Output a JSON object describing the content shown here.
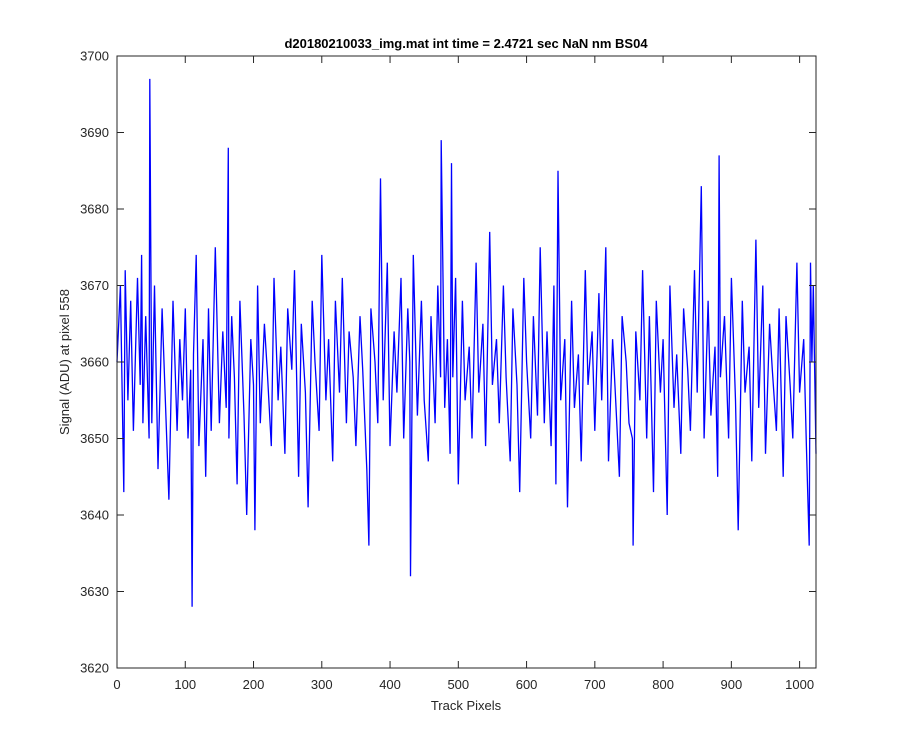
{
  "chart_data": {
    "type": "line",
    "title": "d20180210033_img.mat int time = 2.4721 sec  NaN nm BS04",
    "xlabel": "Track Pixels",
    "ylabel": "Signal (ADU) at pixel 558",
    "xlim": [
      0,
      1024
    ],
    "ylim": [
      3620,
      3700
    ],
    "xticks": [
      0,
      100,
      200,
      300,
      400,
      500,
      600,
      700,
      800,
      900,
      1000
    ],
    "yticks": [
      3620,
      3630,
      3640,
      3650,
      3660,
      3670,
      3680,
      3690,
      3700
    ],
    "grid": false,
    "line_color": "#0000ff",
    "series": [
      {
        "x": [
          0,
          5,
          10,
          12,
          16,
          20,
          24,
          30,
          34,
          36,
          38,
          42,
          47,
          48,
          51,
          55,
          60,
          66,
          70,
          76,
          82,
          88,
          92,
          96,
          100,
          104,
          108,
          110,
          112,
          116,
          120,
          126,
          130,
          134,
          138,
          144,
          150,
          155,
          160,
          163,
          164,
          168,
          172,
          176,
          180,
          186,
          190,
          196,
          200,
          202,
          206,
          210,
          216,
          220,
          226,
          230,
          236,
          240,
          246,
          250,
          256,
          260,
          266,
          270,
          276,
          280,
          286,
          290,
          296,
          300,
          306,
          310,
          316,
          320,
          326,
          330,
          336,
          340,
          346,
          350,
          356,
          360,
          366,
          369,
          372,
          378,
          382,
          386,
          390,
          396,
          400,
          406,
          410,
          416,
          420,
          426,
          429,
          430,
          434,
          440,
          446,
          450,
          456,
          460,
          466,
          470,
          474,
          475,
          480,
          484,
          488,
          490,
          492,
          496,
          500,
          506,
          510,
          516,
          520,
          526,
          530,
          536,
          540,
          546,
          550,
          556,
          560,
          566,
          570,
          576,
          580,
          586,
          590,
          596,
          600,
          606,
          610,
          616,
          620,
          626,
          630,
          636,
          640,
          643,
          646,
          650,
          656,
          660,
          666,
          670,
          676,
          680,
          686,
          690,
          696,
          700,
          706,
          710,
          716,
          720,
          726,
          730,
          736,
          740,
          746,
          750,
          755,
          756,
          760,
          766,
          770,
          776,
          780,
          786,
          790,
          796,
          800,
          806,
          810,
          816,
          820,
          826,
          830,
          836,
          840,
          846,
          850,
          856,
          860,
          866,
          870,
          876,
          880,
          882,
          884,
          890,
          896,
          900,
          906,
          910,
          916,
          920,
          926,
          930,
          936,
          940,
          946,
          950,
          956,
          960,
          966,
          970,
          976,
          980,
          986,
          990,
          996,
          1000,
          1006,
          1010,
          1014,
          1016,
          1018,
          1020,
          1024
        ],
        "y": [
          3660,
          3670,
          3643,
          3672,
          3655,
          3668,
          3651,
          3671,
          3657,
          3674,
          3652,
          3666,
          3650,
          3697,
          3652,
          3670,
          3646,
          3667,
          3657,
          3642,
          3668,
          3651,
          3663,
          3655,
          3667,
          3650,
          3659,
          3628,
          3661,
          3674,
          3649,
          3663,
          3645,
          3667,
          3651,
          3675,
          3652,
          3664,
          3654,
          3688,
          3650,
          3666,
          3658,
          3644,
          3668,
          3653,
          3640,
          3663,
          3657,
          3638,
          3670,
          3652,
          3665,
          3659,
          3649,
          3671,
          3655,
          3662,
          3648,
          3667,
          3659,
          3672,
          3645,
          3665,
          3656,
          3641,
          3668,
          3660,
          3651,
          3674,
          3655,
          3663,
          3647,
          3668,
          3656,
          3671,
          3652,
          3664,
          3658,
          3649,
          3666,
          3659,
          3646,
          3636,
          3667,
          3660,
          3652,
          3684,
          3655,
          3673,
          3649,
          3664,
          3656,
          3671,
          3650,
          3667,
          3660,
          3632,
          3674,
          3653,
          3668,
          3655,
          3647,
          3666,
          3652,
          3670,
          3658,
          3689,
          3654,
          3663,
          3648,
          3686,
          3658,
          3671,
          3644,
          3668,
          3655,
          3662,
          3650,
          3673,
          3656,
          3665,
          3649,
          3677,
          3657,
          3663,
          3652,
          3670,
          3658,
          3647,
          3667,
          3657,
          3643,
          3671,
          3660,
          3650,
          3666,
          3653,
          3675,
          3652,
          3664,
          3649,
          3670,
          3644,
          3685,
          3655,
          3663,
          3641,
          3668,
          3654,
          3661,
          3647,
          3672,
          3657,
          3664,
          3651,
          3669,
          3655,
          3675,
          3647,
          3663,
          3656,
          3645,
          3666,
          3660,
          3652,
          3650,
          3636,
          3664,
          3655,
          3672,
          3650,
          3666,
          3643,
          3668,
          3656,
          3663,
          3640,
          3670,
          3654,
          3661,
          3648,
          3667,
          3659,
          3651,
          3672,
          3656,
          3683,
          3650,
          3668,
          3653,
          3662,
          3645,
          3687,
          3658,
          3666,
          3650,
          3671,
          3655,
          3638,
          3668,
          3656,
          3662,
          3647,
          3676,
          3654,
          3670,
          3648,
          3665,
          3659,
          3651,
          3667,
          3645,
          3666,
          3657,
          3650,
          3673,
          3656,
          3663,
          3649,
          3636,
          3673,
          3660,
          3670,
          3648
        ]
      }
    ]
  }
}
